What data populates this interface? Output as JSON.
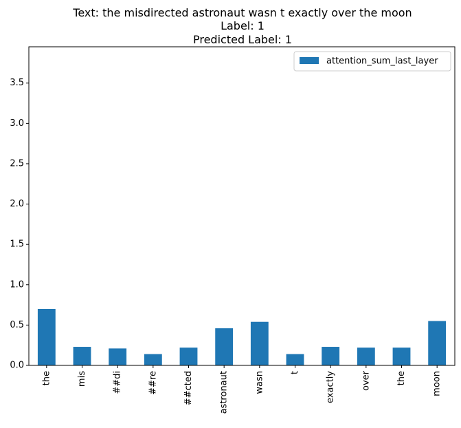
{
  "chart_data": {
    "type": "bar",
    "title_lines": [
      "Text: the misdirected astronaut wasn t exactly over the moon",
      "Label: 1",
      "Predicted Label: 1"
    ],
    "xlabel": "",
    "ylabel": "",
    "categories": [
      "the",
      "mis",
      "##di",
      "##re",
      "##cted",
      "astronaut",
      "wasn",
      "t",
      "exactly",
      "over",
      "the",
      "moon"
    ],
    "series": [
      {
        "name": "attention_sum_last_layer",
        "color": "#1f77b4",
        "values": [
          0.7,
          0.23,
          0.21,
          0.14,
          0.22,
          0.46,
          0.54,
          0.14,
          0.23,
          0.22,
          0.22,
          0.55
        ]
      }
    ],
    "ylim": [
      0,
      3.95
    ],
    "yticks": [
      0.0,
      0.5,
      1.0,
      1.5,
      2.0,
      2.5,
      3.0,
      3.5
    ],
    "ytick_labels": [
      "0.0",
      "0.5",
      "1.0",
      "1.5",
      "2.0",
      "2.5",
      "3.0",
      "3.5"
    ],
    "legend_position": "top-right",
    "grid": false
  }
}
